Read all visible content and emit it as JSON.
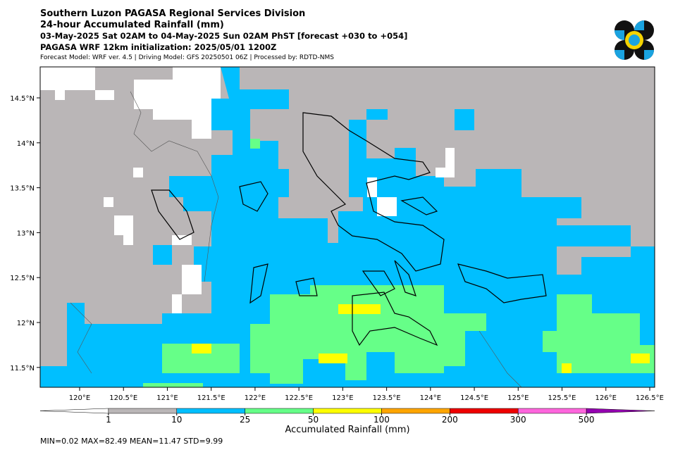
{
  "header": {
    "lines": [
      "Southern Luzon PAGASA Regional Services Division",
      "24-hour Accumulated Rainfall (mm)",
      "03-May-2025 Sat 02AM to 04-May-2025 Sun 02AM PhST [forecast +030 to +054]",
      "PAGASA WRF 12km initialization: 2025/05/01 1200Z"
    ],
    "note": "Forecast Model: WRF ver. 4.5 | Driving Model: GFS 20250501 06Z | Processed by: RDTD-NMS"
  },
  "map": {
    "lat_labels": [
      "14.5°N",
      "14°N",
      "13.5°N",
      "13°N",
      "12.5°N",
      "12°N",
      "11.5°N"
    ],
    "lon_labels": [
      "120°E",
      "120.5°E",
      "121°E",
      "121.5°E",
      "122°E",
      "122.5°E",
      "123°E",
      "123.5°E",
      "124°E",
      "124.5°E",
      "125°E",
      "125.5°E",
      "126°E",
      "126.5°E"
    ]
  },
  "colorbar": {
    "colors": [
      "#ffffff",
      "#bab6b7",
      "#00bfff",
      "#66ff88",
      "#ffff00",
      "#ffa500",
      "#ee0000",
      "#ff66dd",
      "#9400b0"
    ],
    "labels": [
      "1",
      "10",
      "25",
      "50",
      "100",
      "200",
      "300",
      "500"
    ],
    "title": "Accumulated Rainfall (mm)"
  },
  "stats": "MIN=0.02   MAX=82.49   MEAN=11.47   STD=9.99"
}
